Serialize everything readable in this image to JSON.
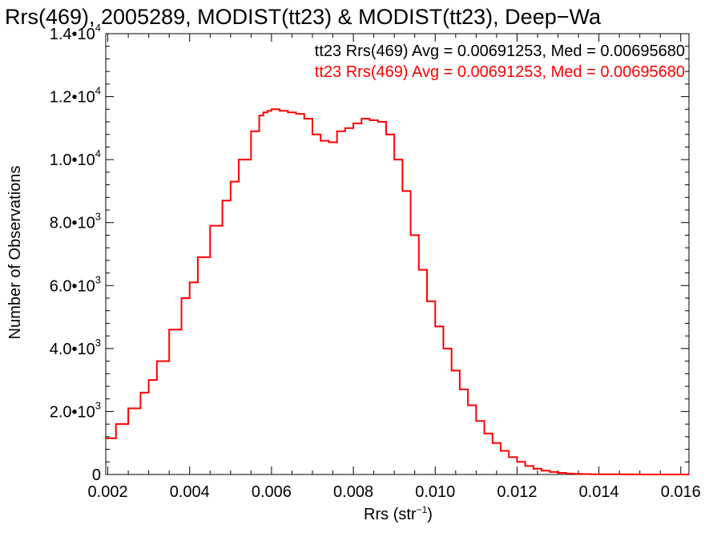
{
  "chart_data": {
    "type": "line",
    "step": true,
    "title": "Rrs(469), 2005289, MODIST(tt23) & MODIST(tt23), Deep−Wa",
    "xlabel": "Rrs (str",
    "xlabel_sup": "−1",
    "xlabel_close": ")",
    "ylabel": "Number of Observations",
    "xlim": [
      0.00195,
      0.0162
    ],
    "ylim": [
      0,
      14000
    ],
    "x_ticks": [
      {
        "value": 0.002,
        "label": "0.002"
      },
      {
        "value": 0.004,
        "label": "0.004"
      },
      {
        "value": 0.006,
        "label": "0.006"
      },
      {
        "value": 0.008,
        "label": "0.008"
      },
      {
        "value": 0.01,
        "label": "0.010"
      },
      {
        "value": 0.012,
        "label": "0.012"
      },
      {
        "value": 0.014,
        "label": "0.014"
      },
      {
        "value": 0.016,
        "label": "0.016"
      }
    ],
    "y_ticks": [
      {
        "value": 0,
        "mant": "0",
        "exp": ""
      },
      {
        "value": 2000,
        "mant": "2.0•10",
        "exp": "3"
      },
      {
        "value": 4000,
        "mant": "4.0•10",
        "exp": "3"
      },
      {
        "value": 6000,
        "mant": "6.0•10",
        "exp": "3"
      },
      {
        "value": 8000,
        "mant": "8.0•10",
        "exp": "3"
      },
      {
        "value": 10000,
        "mant": "1.0•10",
        "exp": "4"
      },
      {
        "value": 12000,
        "mant": "1.2•10",
        "exp": "4"
      },
      {
        "value": 14000,
        "mant": "1.4•10",
        "exp": "4"
      }
    ],
    "legend": [
      {
        "text": "tt23 Rrs(469) Avg = 0.00691253, Med = 0.00695680",
        "color": "#000000"
      },
      {
        "text": "tt23 Rrs(469) Avg = 0.00691253, Med = 0.00695680",
        "color": "#ff0000"
      }
    ],
    "legend_position": "top-right",
    "series": [
      {
        "color": "#ff0000",
        "x": [
          0.00195,
          0.0022,
          0.0025,
          0.0028,
          0.003,
          0.0032,
          0.0035,
          0.0038,
          0.004,
          0.0042,
          0.0045,
          0.0048,
          0.005,
          0.0052,
          0.0055,
          0.0057,
          0.0058,
          0.0059,
          0.006,
          0.0062,
          0.0064,
          0.0066,
          0.0068,
          0.007,
          0.0072,
          0.0074,
          0.0076,
          0.0078,
          0.008,
          0.0082,
          0.0084,
          0.0086,
          0.0088,
          0.009,
          0.0092,
          0.0094,
          0.0096,
          0.0098,
          0.01,
          0.0102,
          0.0104,
          0.0106,
          0.0108,
          0.011,
          0.0112,
          0.0114,
          0.0116,
          0.0118,
          0.012,
          0.0122,
          0.0124,
          0.0126,
          0.0128,
          0.013,
          0.0132,
          0.0134,
          0.0136,
          0.0138,
          0.014,
          0.0145,
          0.015,
          0.0162
        ],
        "y": [
          1150,
          1600,
          2100,
          2600,
          3000,
          3600,
          4600,
          5600,
          6100,
          6900,
          7900,
          8700,
          9300,
          10000,
          10900,
          11400,
          11500,
          11550,
          11600,
          11550,
          11500,
          11450,
          11300,
          10800,
          10600,
          10550,
          10900,
          11000,
          11150,
          11300,
          11250,
          11200,
          10800,
          10000,
          9000,
          7600,
          6500,
          5500,
          4700,
          4000,
          3300,
          2700,
          2200,
          1700,
          1300,
          1000,
          750,
          550,
          400,
          270,
          180,
          120,
          80,
          50,
          30,
          18,
          12,
          8,
          5,
          3,
          1,
          0
        ]
      }
    ]
  }
}
